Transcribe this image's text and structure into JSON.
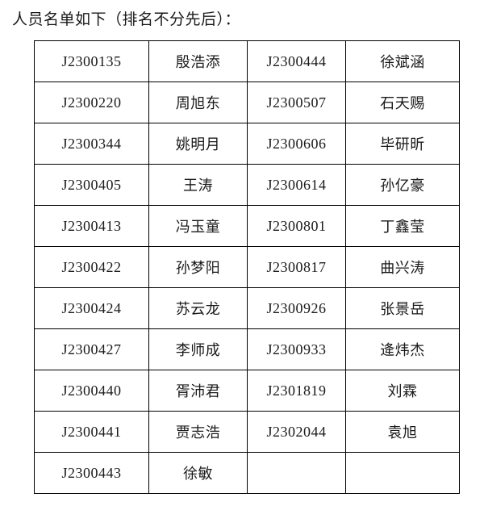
{
  "page": {
    "title": "人员名单如下（排名不分先后）："
  },
  "table": {
    "rows": [
      {
        "id1": "J2300135",
        "name1": "殷浩添",
        "id2": "J2300444",
        "name2": "徐斌涵"
      },
      {
        "id1": "J2300220",
        "name1": "周旭东",
        "id2": "J2300507",
        "name2": "石天赐"
      },
      {
        "id1": "J2300344",
        "name1": "姚明月",
        "id2": "J2300606",
        "name2": "毕研昕"
      },
      {
        "id1": "J2300405",
        "name1": "王涛",
        "id2": "J2300614",
        "name2": "孙亿豪"
      },
      {
        "id1": "J2300413",
        "name1": "冯玉童",
        "id2": "J2300801",
        "name2": "丁鑫莹"
      },
      {
        "id1": "J2300422",
        "name1": "孙梦阳",
        "id2": "J2300817",
        "name2": "曲兴涛"
      },
      {
        "id1": "J2300424",
        "name1": "苏云龙",
        "id2": "J2300926",
        "name2": "张景岳"
      },
      {
        "id1": "J2300427",
        "name1": "李师成",
        "id2": "J2300933",
        "name2": "逄炜杰"
      },
      {
        "id1": "J2300440",
        "name1": "胥沛君",
        "id2": "J2301819",
        "name2": "刘霖"
      },
      {
        "id1": "J2300441",
        "name1": "贾志浩",
        "id2": "J2302044",
        "name2": "袁旭"
      },
      {
        "id1": "J2300443",
        "name1": "徐敏",
        "id2": "",
        "name2": ""
      }
    ]
  },
  "colors": {
    "background": "#ffffff",
    "text": "#1a1a1a",
    "border": "#000000"
  }
}
